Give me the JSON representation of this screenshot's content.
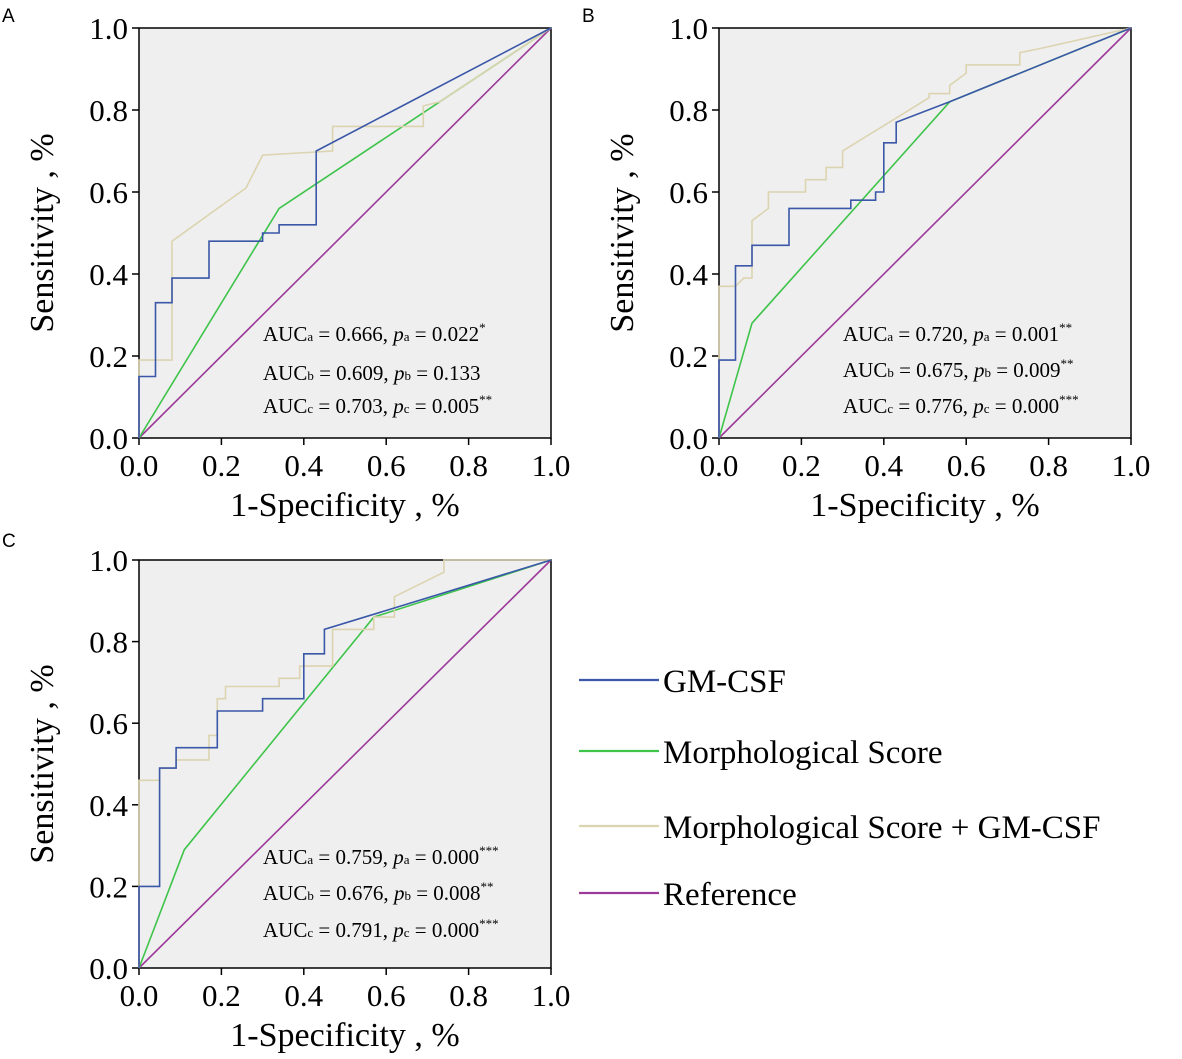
{
  "colors": {
    "gm_csf": "#3a57a8",
    "morph": "#3ec44a",
    "combined": "#dcd4b0",
    "reference": "#9c3a9a",
    "plot_bg": "#efefef"
  },
  "legend": [
    {
      "label": "GM-CSF",
      "color_key": "gm_csf"
    },
    {
      "label": "Morphological Score",
      "color_key": "morph"
    },
    {
      "label": "Morphological Score + GM-CSF",
      "color_key": "combined"
    },
    {
      "label": "Reference",
      "color_key": "reference"
    }
  ],
  "chart_data": [
    {
      "panel": "A",
      "type": "line",
      "xlabel": "1-Specificity , %",
      "ylabel": "Sensitivity , %",
      "xlim": [
        0,
        1
      ],
      "ylim": [
        0,
        1
      ],
      "ticks": [
        "0.0",
        "0.2",
        "0.4",
        "0.6",
        "0.8",
        "1.0"
      ],
      "series": [
        {
          "name": "GM-CSF",
          "color_key": "gm_csf",
          "x": [
            0,
            0,
            0.04,
            0.04,
            0.08,
            0.08,
            0.17,
            0.17,
            0.3,
            0.3,
            0.34,
            0.34,
            0.43,
            0.43,
            1.0
          ],
          "y": [
            0,
            0.15,
            0.15,
            0.33,
            0.33,
            0.39,
            0.39,
            0.48,
            0.48,
            0.5,
            0.5,
            0.52,
            0.52,
            0.7,
            1.0
          ]
        },
        {
          "name": "Morphological Score",
          "color_key": "morph",
          "x": [
            0,
            0.34,
            1.0
          ],
          "y": [
            0,
            0.56,
            1.0
          ]
        },
        {
          "name": "Morphological Score + GM-CSF",
          "color_key": "combined",
          "x": [
            0,
            0,
            0.08,
            0.08,
            0.26,
            0.3,
            0.47,
            0.47,
            0.69,
            0.69,
            0.73,
            1.0
          ],
          "y": [
            0,
            0.19,
            0.19,
            0.48,
            0.61,
            0.69,
            0.7,
            0.76,
            0.76,
            0.81,
            0.82,
            1.0
          ]
        },
        {
          "name": "Reference",
          "color_key": "reference",
          "x": [
            0,
            1
          ],
          "y": [
            0,
            1
          ]
        }
      ],
      "annotations": [
        {
          "pre": "AUC",
          "sub1": "a",
          "mid": " = 0.666, ",
          "p": "p",
          "sub2": "a",
          "post": " = 0.022",
          "sup": "*"
        },
        {
          "pre": "AUC",
          "sub1": "b",
          "mid": " = 0.609, ",
          "p": "p",
          "sub2": "b",
          "post": " = 0.133",
          "sup": ""
        },
        {
          "pre": "AUC",
          "sub1": "c",
          "mid": " = 0.703, ",
          "p": "p",
          "sub2": "c",
          "post": " = 0.005",
          "sup": "**"
        }
      ]
    },
    {
      "panel": "B",
      "type": "line",
      "xlabel": "1-Specificity , %",
      "ylabel": "Sensitivity , %",
      "xlim": [
        0,
        1
      ],
      "ylim": [
        0,
        1
      ],
      "ticks": [
        "0.0",
        "0.2",
        "0.4",
        "0.6",
        "0.8",
        "1.0"
      ],
      "series": [
        {
          "name": "GM-CSF",
          "color_key": "gm_csf",
          "x": [
            0,
            0,
            0.04,
            0.04,
            0.08,
            0.08,
            0.17,
            0.17,
            0.32,
            0.32,
            0.38,
            0.38,
            0.4,
            0.4,
            0.43,
            0.43,
            0.56,
            1.0
          ],
          "y": [
            0,
            0.19,
            0.19,
            0.42,
            0.42,
            0.47,
            0.47,
            0.56,
            0.56,
            0.58,
            0.58,
            0.6,
            0.6,
            0.72,
            0.72,
            0.77,
            0.82,
            1.0
          ]
        },
        {
          "name": "Morphological Score",
          "color_key": "morph",
          "x": [
            0,
            0.08,
            0.56,
            1.0
          ],
          "y": [
            0,
            0.28,
            0.82,
            1.0
          ]
        },
        {
          "name": "Morphological Score + GM-CSF",
          "color_key": "combined",
          "x": [
            0,
            0,
            0.04,
            0.06,
            0.08,
            0.08,
            0.12,
            0.12,
            0.21,
            0.21,
            0.26,
            0.26,
            0.3,
            0.3,
            0.51,
            0.51,
            0.56,
            0.56,
            0.6,
            0.6,
            0.73,
            0.73,
            0.78,
            1.0
          ],
          "y": [
            0,
            0.37,
            0.37,
            0.39,
            0.39,
            0.53,
            0.56,
            0.6,
            0.6,
            0.63,
            0.63,
            0.66,
            0.66,
            0.7,
            0.83,
            0.84,
            0.84,
            0.86,
            0.89,
            0.91,
            0.91,
            0.94,
            0.95,
            1.0
          ]
        },
        {
          "name": "Reference",
          "color_key": "reference",
          "x": [
            0,
            1
          ],
          "y": [
            0,
            1
          ]
        }
      ],
      "annotations": [
        {
          "pre": "AUC",
          "sub1": "a",
          "mid": " = 0.720, ",
          "p": "p",
          "sub2": "a",
          "post": " = 0.001",
          "sup": "**"
        },
        {
          "pre": "AUC",
          "sub1": "b",
          "mid": " = 0.675, ",
          "p": "p",
          "sub2": "b",
          "post": " = 0.009",
          "sup": "**"
        },
        {
          "pre": "AUC",
          "sub1": "c",
          "mid": " = 0.776, ",
          "p": "p",
          "sub2": "c",
          "post": " = 0.000",
          "sup": "***"
        }
      ]
    },
    {
      "panel": "C",
      "type": "line",
      "xlabel": "1-Specificity , %",
      "ylabel": "Sensitivity , %",
      "xlim": [
        0,
        1
      ],
      "ylim": [
        0,
        1
      ],
      "ticks": [
        "0.0",
        "0.2",
        "0.4",
        "0.6",
        "0.8",
        "1.0"
      ],
      "series": [
        {
          "name": "GM-CSF",
          "color_key": "gm_csf",
          "x": [
            0,
            0,
            0.05,
            0.05,
            0.09,
            0.09,
            0.19,
            0.19,
            0.3,
            0.3,
            0.4,
            0.4,
            0.45,
            0.45,
            1.0
          ],
          "y": [
            0,
            0.2,
            0.2,
            0.49,
            0.49,
            0.54,
            0.54,
            0.63,
            0.63,
            0.66,
            0.66,
            0.77,
            0.77,
            0.83,
            1.0
          ]
        },
        {
          "name": "Morphological Score",
          "color_key": "morph",
          "x": [
            0,
            0.11,
            0.57,
            1.0
          ],
          "y": [
            0,
            0.29,
            0.86,
            1.0
          ]
        },
        {
          "name": "Morphological Score + GM-CSF",
          "color_key": "combined",
          "x": [
            0,
            0,
            0.05,
            0.05,
            0.09,
            0.09,
            0.17,
            0.17,
            0.19,
            0.19,
            0.21,
            0.21,
            0.34,
            0.34,
            0.39,
            0.39,
            0.47,
            0.47,
            0.57,
            0.57,
            0.62,
            0.62,
            0.74,
            0.74,
            1.0
          ],
          "y": [
            0,
            0.46,
            0.46,
            0.49,
            0.49,
            0.51,
            0.51,
            0.57,
            0.57,
            0.66,
            0.66,
            0.69,
            0.69,
            0.71,
            0.71,
            0.74,
            0.74,
            0.83,
            0.83,
            0.86,
            0.86,
            0.91,
            0.97,
            1.0,
            1.0
          ]
        },
        {
          "name": "Reference",
          "color_key": "reference",
          "x": [
            0,
            1
          ],
          "y": [
            0,
            1
          ]
        }
      ],
      "annotations": [
        {
          "pre": "AUC",
          "sub1": "a",
          "mid": " = 0.759, ",
          "p": "p",
          "sub2": "a",
          "post": " = 0.000",
          "sup": "***"
        },
        {
          "pre": "AUC",
          "sub1": "b",
          "mid": " = 0.676, ",
          "p": "p",
          "sub2": "b",
          "post": " = 0.008",
          "sup": "**"
        },
        {
          "pre": "AUC",
          "sub1": "c",
          "mid": " = 0.791, ",
          "p": "p",
          "sub2": "c",
          "post": " = 0.000",
          "sup": "***"
        }
      ]
    }
  ]
}
